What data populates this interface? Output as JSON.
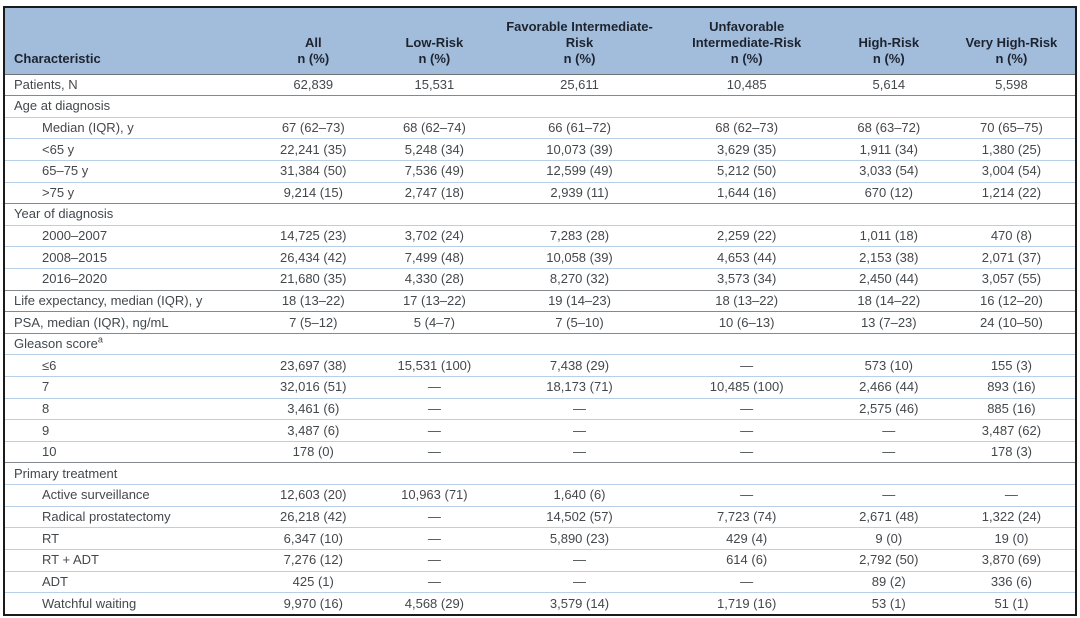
{
  "colors": {
    "header_bg": "#a2bddc",
    "header_text": "#1d2430",
    "body_text": "#43484c",
    "row_line": "#b7cfe7",
    "section_line": "#85898e",
    "header_line": "#6e7277",
    "border": "#1a1a1a"
  },
  "table": {
    "columns": [
      {
        "label": "Characteristic",
        "sub": ""
      },
      {
        "label": "All",
        "sub": "n (%)"
      },
      {
        "label": "Low-Risk",
        "sub": "n (%)"
      },
      {
        "label": "Favorable Intermediate-Risk",
        "sub": "n (%)"
      },
      {
        "label": "Unfavorable Intermediate-Risk",
        "sub": "n (%)"
      },
      {
        "label": "High-Risk",
        "sub": "n (%)"
      },
      {
        "label": "Very High-Risk",
        "sub": "n (%)"
      }
    ],
    "rows": [
      {
        "label": "Patients, N",
        "indent": 0,
        "values": [
          "62,839",
          "15,531",
          "25,611",
          "10,485",
          "5,614",
          "5,598"
        ],
        "divider_after": "dark"
      },
      {
        "label": "Age at diagnosis",
        "indent": 0,
        "values": [
          "",
          "",
          "",
          "",
          "",
          ""
        ],
        "divider_after": "light"
      },
      {
        "label": "Median (IQR), y",
        "indent": 1,
        "values": [
          "67 (62–73)",
          "68 (62–74)",
          "66 (61–72)",
          "68 (62–73)",
          "68 (63–72)",
          "70 (65–75)"
        ],
        "divider_after": "light"
      },
      {
        "label": "<65 y",
        "indent": 1,
        "values": [
          "22,241 (35)",
          "5,248 (34)",
          "10,073 (39)",
          "3,629 (35)",
          "1,911 (34)",
          "1,380 (25)"
        ],
        "divider_after": "light"
      },
      {
        "label": "65–75 y",
        "indent": 1,
        "values": [
          "31,384 (50)",
          "7,536 (49)",
          "12,599 (49)",
          "5,212 (50)",
          "3,033 (54)",
          "3,004 (54)"
        ],
        "divider_after": "light"
      },
      {
        "label": ">75 y",
        "indent": 1,
        "values": [
          "9,214 (15)",
          "2,747 (18)",
          "2,939 (11)",
          "1,644 (16)",
          "670 (12)",
          "1,214 (22)"
        ],
        "divider_after": "dark"
      },
      {
        "label": "Year of diagnosis",
        "indent": 0,
        "values": [
          "",
          "",
          "",
          "",
          "",
          ""
        ],
        "divider_after": "light"
      },
      {
        "label": "2000–2007",
        "indent": 1,
        "values": [
          "14,725 (23)",
          "3,702 (24)",
          "7,283 (28)",
          "2,259 (22)",
          "1,011 (18)",
          "470 (8)"
        ],
        "divider_after": "light"
      },
      {
        "label": "2008–2015",
        "indent": 1,
        "values": [
          "26,434 (42)",
          "7,499 (48)",
          "10,058 (39)",
          "4,653 (44)",
          "2,153 (38)",
          "2,071 (37)"
        ],
        "divider_after": "light"
      },
      {
        "label": "2016–2020",
        "indent": 1,
        "values": [
          "21,680 (35)",
          "4,330 (28)",
          "8,270 (32)",
          "3,573 (34)",
          "2,450 (44)",
          "3,057 (55)"
        ],
        "divider_after": "dark"
      },
      {
        "label": "Life expectancy, median (IQR), y",
        "indent": 0,
        "values": [
          "18 (13–22)",
          "17 (13–22)",
          "19 (14–23)",
          "18 (13–22)",
          "18 (14–22)",
          "16 (12–20)"
        ],
        "divider_after": "dark"
      },
      {
        "label": "PSA, median (IQR), ng/mL",
        "indent": 0,
        "values": [
          "7 (5–12)",
          "5 (4–7)",
          "7 (5–10)",
          "10 (6–13)",
          "13 (7–23)",
          "24 (10–50)"
        ],
        "divider_after": "dark"
      },
      {
        "label": "Gleason score",
        "sup": "a",
        "indent": 0,
        "values": [
          "",
          "",
          "",
          "",
          "",
          ""
        ],
        "divider_after": "light"
      },
      {
        "label": "≤6",
        "indent": 1,
        "values": [
          "23,697 (38)",
          "15,531 (100)",
          "7,438 (29)",
          "—",
          "573 (10)",
          "155 (3)"
        ],
        "divider_after": "light"
      },
      {
        "label": "7",
        "indent": 1,
        "values": [
          "32,016 (51)",
          "—",
          "18,173 (71)",
          "10,485 (100)",
          "2,466 (44)",
          "893 (16)"
        ],
        "divider_after": "light"
      },
      {
        "label": "8",
        "indent": 1,
        "values": [
          "3,461 (6)",
          "—",
          "—",
          "—",
          "2,575 (46)",
          "885 (16)"
        ],
        "divider_after": "light"
      },
      {
        "label": "9",
        "indent": 1,
        "values": [
          "3,487 (6)",
          "—",
          "—",
          "—",
          "—",
          "3,487 (62)"
        ],
        "divider_after": "light"
      },
      {
        "label": "10",
        "indent": 1,
        "values": [
          "178 (0)",
          "—",
          "—",
          "—",
          "—",
          "178 (3)"
        ],
        "divider_after": "dark"
      },
      {
        "label": "Primary treatment",
        "indent": 0,
        "values": [
          "",
          "",
          "",
          "",
          "",
          ""
        ],
        "divider_after": "light"
      },
      {
        "label": "Active surveillance",
        "indent": 1,
        "values": [
          "12,603 (20)",
          "10,963 (71)",
          "1,640 (6)",
          "—",
          "—",
          "—"
        ],
        "divider_after": "light"
      },
      {
        "label": "Radical prostatectomy",
        "indent": 1,
        "values": [
          "26,218 (42)",
          "—",
          "14,502 (57)",
          "7,723 (74)",
          "2,671 (48)",
          "1,322 (24)"
        ],
        "divider_after": "light"
      },
      {
        "label": "RT",
        "indent": 1,
        "values": [
          "6,347 (10)",
          "—",
          "5,890 (23)",
          "429 (4)",
          "9 (0)",
          "19 (0)"
        ],
        "divider_after": "light"
      },
      {
        "label": "RT + ADT",
        "indent": 1,
        "values": [
          "7,276 (12)",
          "—",
          "—",
          "614 (6)",
          "2,792 (50)",
          "3,870 (69)"
        ],
        "divider_after": "light"
      },
      {
        "label": "ADT",
        "indent": 1,
        "values": [
          "425 (1)",
          "—",
          "—",
          "—",
          "89 (2)",
          "336 (6)"
        ],
        "divider_after": "light"
      },
      {
        "label": "Watchful waiting",
        "indent": 1,
        "values": [
          "9,970 (16)",
          "4,568 (29)",
          "3,579 (14)",
          "1,719 (16)",
          "53 (1)",
          "51 (1)"
        ],
        "divider_after": "none"
      }
    ]
  }
}
